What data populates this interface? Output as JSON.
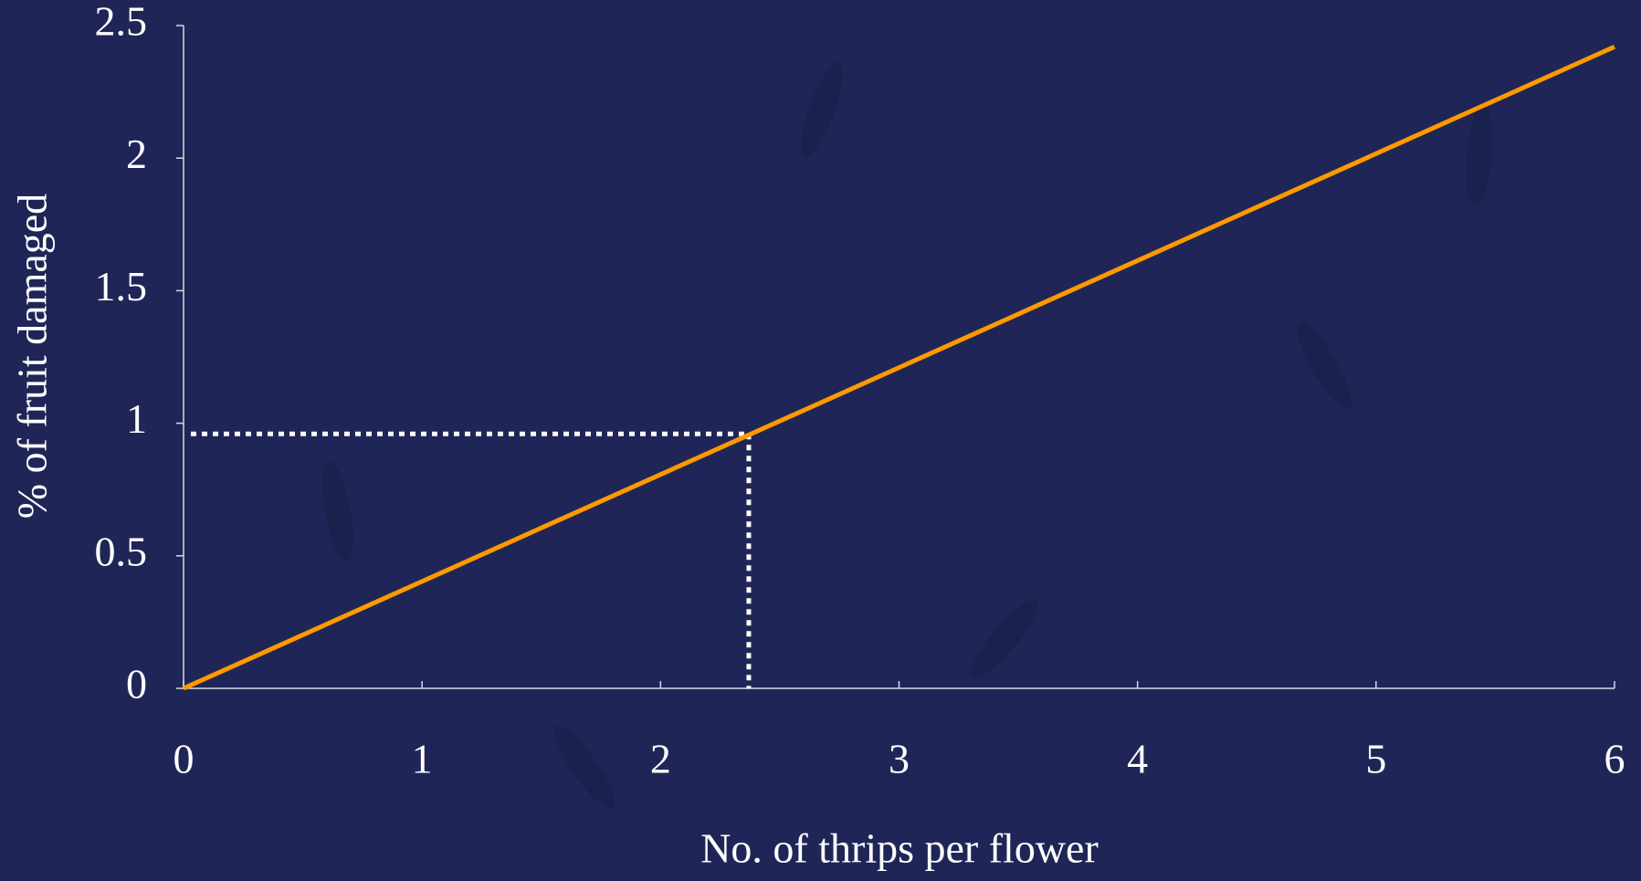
{
  "chart_data": {
    "type": "line",
    "x_label": "No. of thrips per flower",
    "y_label": "% of fruit damaged",
    "x": [
      0,
      6
    ],
    "values": [
      0,
      2.42
    ],
    "color": "#ff9900",
    "guide": {
      "x": 2.37,
      "y": 0.96,
      "color": "#ffffff"
    },
    "xlim": [
      0,
      6
    ],
    "xticks": [
      0,
      1,
      2,
      3,
      4,
      5,
      6
    ],
    "ylim": [
      0,
      2.5
    ],
    "yticks": [
      0,
      0.5,
      1,
      1.5,
      2,
      2.5
    ],
    "grid": false
  }
}
